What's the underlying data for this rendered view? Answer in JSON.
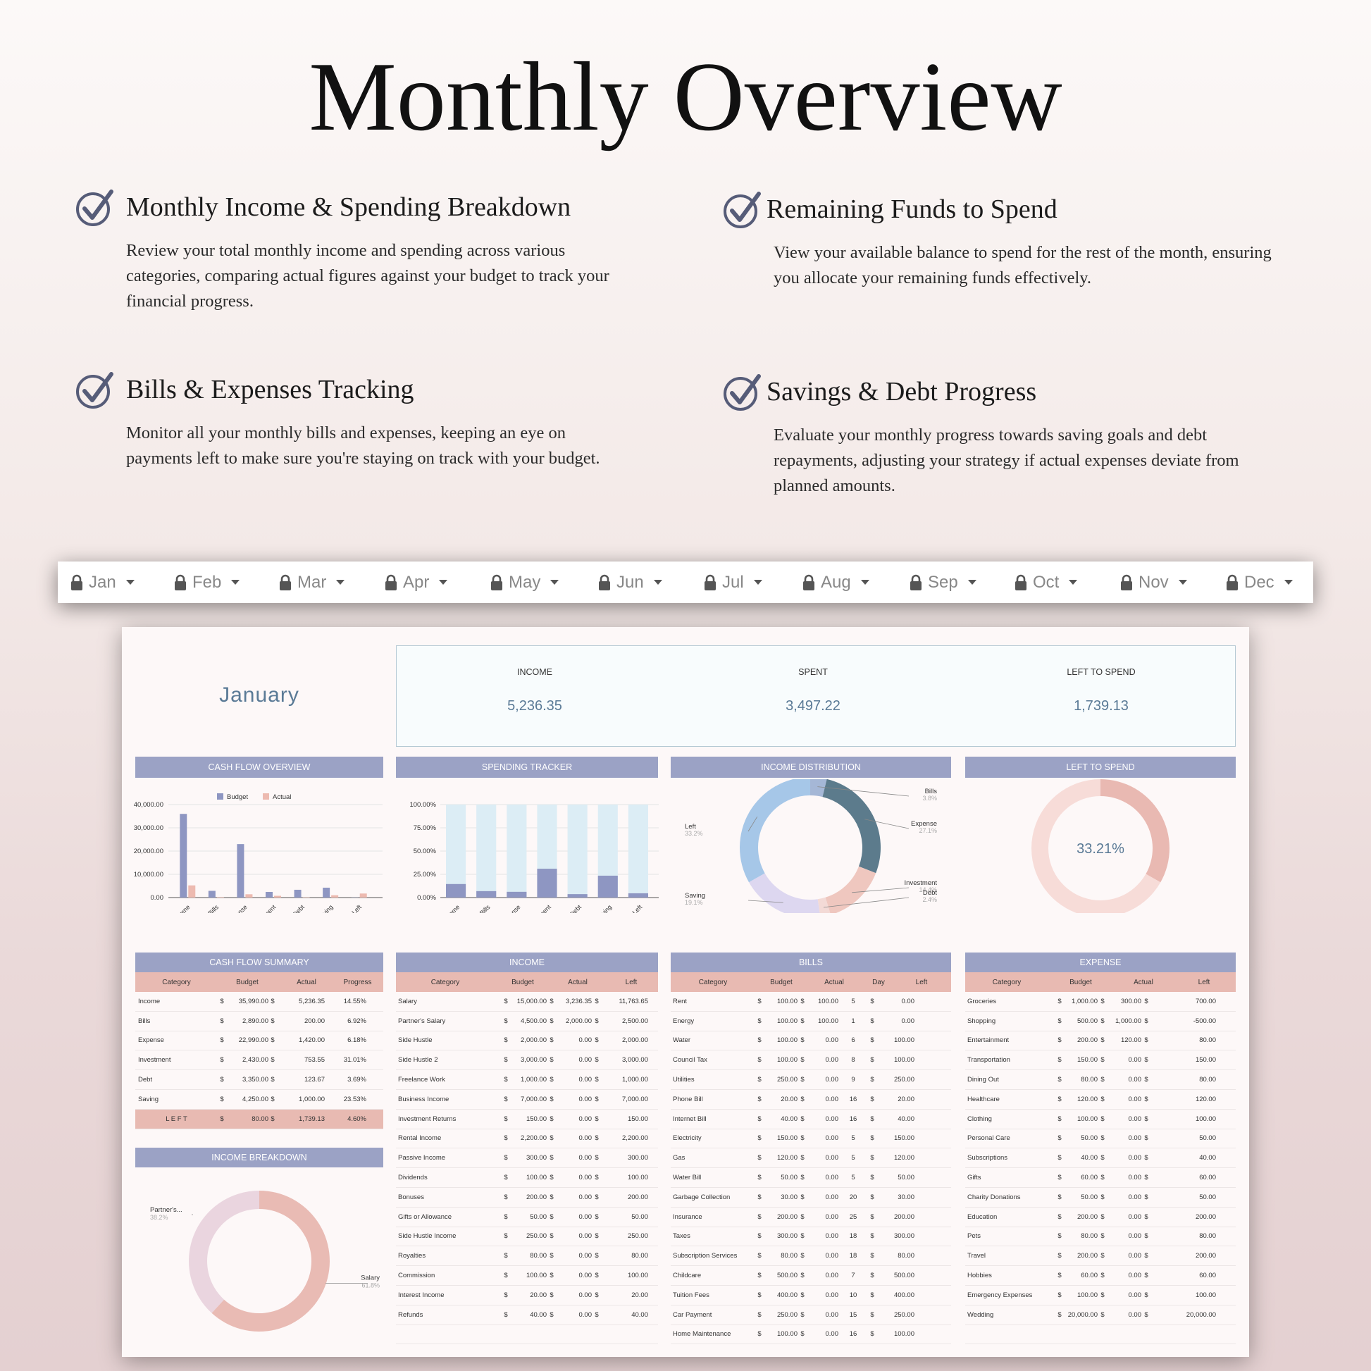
{
  "hero": {
    "title": "Monthly Overview"
  },
  "features": [
    {
      "title": "Monthly Income & Spending Breakdown",
      "text": "Review your total monthly income and spending across various categories, comparing actual figures against your budget to track your financial progress."
    },
    {
      "title": "Remaining Funds to Spend",
      "text": "View your available balance to spend for the rest of the month, ensuring you allocate your remaining funds effectively."
    },
    {
      "title": "Bills & Expenses Tracking",
      "text": "Monitor all your monthly bills and expenses, keeping an eye on payments left to make sure you're staying on track with your budget."
    },
    {
      "title": "Savings & Debt Progress",
      "text": "Evaluate your monthly progress towards saving goals and debt repayments, adjusting your strategy if actual expenses deviate from planned amounts."
    }
  ],
  "months": [
    "Jan",
    "Feb",
    "Mar",
    "Apr",
    "May",
    "Jun",
    "Jul",
    "Aug",
    "Sep",
    "Oct",
    "Nov",
    "Dec"
  ],
  "sheet": {
    "month_name": "January",
    "kpis": [
      {
        "label": "INCOME",
        "value": "5,236.35"
      },
      {
        "label": "SPENT",
        "value": "3,497.22"
      },
      {
        "label": "LEFT TO SPEND",
        "value": "1,739.13"
      }
    ],
    "headers": {
      "cash_flow_overview": "CASH FLOW OVERVIEW",
      "spending_tracker": "SPENDING TRACKER",
      "income_distribution": "INCOME DISTRIBUTION",
      "left_to_spend": "LEFT TO SPEND",
      "cash_flow_summary": "CASH FLOW SUMMARY",
      "income": "INCOME",
      "bills": "BILLS",
      "expense": "EXPENSE",
      "income_breakdown": "INCOME BREAKDOWN"
    },
    "cash_flow_summary": {
      "columns": [
        "Category",
        "Budget",
        "Actual",
        "Progress"
      ],
      "rows": [
        [
          "Income",
          "$",
          "35,990.00",
          "$",
          "5,236.35",
          "14.55%"
        ],
        [
          "Bills",
          "$",
          "2,890.00",
          "$",
          "200.00",
          "6.92%"
        ],
        [
          "Expense",
          "$",
          "22,990.00",
          "$",
          "1,420.00",
          "6.18%"
        ],
        [
          "Investment",
          "$",
          "2,430.00",
          "$",
          "753.55",
          "31.01%"
        ],
        [
          "Debt",
          "$",
          "3,350.00",
          "$",
          "123.67",
          "3.69%"
        ],
        [
          "Saving",
          "$",
          "4,250.00",
          "$",
          "1,000.00",
          "23.53%"
        ]
      ],
      "left_row": [
        "L E F T",
        "$",
        "80.00",
        "$",
        "1,739.13",
        "4.60%"
      ]
    },
    "income_table": {
      "columns": [
        "Category",
        "Budget",
        "Actual",
        "Left"
      ],
      "rows": [
        [
          "Salary",
          "$",
          "15,000.00",
          "$",
          "3,236.35",
          "$",
          "11,763.65"
        ],
        [
          "Partner's Salary",
          "$",
          "4,500.00",
          "$",
          "2,000.00",
          "$",
          "2,500.00"
        ],
        [
          "Side Hustle",
          "$",
          "2,000.00",
          "$",
          "0.00",
          "$",
          "2,000.00"
        ],
        [
          "Side Hustle 2",
          "$",
          "3,000.00",
          "$",
          "0.00",
          "$",
          "3,000.00"
        ],
        [
          "Freelance Work",
          "$",
          "1,000.00",
          "$",
          "0.00",
          "$",
          "1,000.00"
        ],
        [
          "Business Income",
          "$",
          "7,000.00",
          "$",
          "0.00",
          "$",
          "7,000.00"
        ],
        [
          "Investment Returns",
          "$",
          "150.00",
          "$",
          "0.00",
          "$",
          "150.00"
        ],
        [
          "Rental Income",
          "$",
          "2,200.00",
          "$",
          "0.00",
          "$",
          "2,200.00"
        ],
        [
          "Passive Income",
          "$",
          "300.00",
          "$",
          "0.00",
          "$",
          "300.00"
        ],
        [
          "Dividends",
          "$",
          "100.00",
          "$",
          "0.00",
          "$",
          "100.00"
        ],
        [
          "Bonuses",
          "$",
          "200.00",
          "$",
          "0.00",
          "$",
          "200.00"
        ],
        [
          "Gifts or Allowance",
          "$",
          "50.00",
          "$",
          "0.00",
          "$",
          "50.00"
        ],
        [
          "Side Hustle Income",
          "$",
          "250.00",
          "$",
          "0.00",
          "$",
          "250.00"
        ],
        [
          "Royalties",
          "$",
          "80.00",
          "$",
          "0.00",
          "$",
          "80.00"
        ],
        [
          "Commission",
          "$",
          "100.00",
          "$",
          "0.00",
          "$",
          "100.00"
        ],
        [
          "Interest Income",
          "$",
          "20.00",
          "$",
          "0.00",
          "$",
          "20.00"
        ],
        [
          "Refunds",
          "$",
          "40.00",
          "$",
          "0.00",
          "$",
          "40.00"
        ],
        [
          "",
          "",
          "",
          "",
          "",
          "",
          ""
        ]
      ]
    },
    "bills_table": {
      "columns": [
        "Category",
        "Budget",
        "Actual",
        "Day",
        "Left"
      ],
      "rows": [
        [
          "Rent",
          "$",
          "100.00",
          "$",
          "100.00",
          "5",
          "$",
          "0.00"
        ],
        [
          "Energy",
          "$",
          "100.00",
          "$",
          "100.00",
          "1",
          "$",
          "0.00"
        ],
        [
          "Water",
          "$",
          "100.00",
          "$",
          "0.00",
          "6",
          "$",
          "100.00"
        ],
        [
          "Council Tax",
          "$",
          "100.00",
          "$",
          "0.00",
          "8",
          "$",
          "100.00"
        ],
        [
          "Utilities",
          "$",
          "250.00",
          "$",
          "0.00",
          "9",
          "$",
          "250.00"
        ],
        [
          "Phone Bill",
          "$",
          "20.00",
          "$",
          "0.00",
          "16",
          "$",
          "20.00"
        ],
        [
          "Internet Bill",
          "$",
          "40.00",
          "$",
          "0.00",
          "16",
          "$",
          "40.00"
        ],
        [
          "Electricity",
          "$",
          "150.00",
          "$",
          "0.00",
          "5",
          "$",
          "150.00"
        ],
        [
          "Gas",
          "$",
          "120.00",
          "$",
          "0.00",
          "5",
          "$",
          "120.00"
        ],
        [
          "Water Bill",
          "$",
          "50.00",
          "$",
          "0.00",
          "5",
          "$",
          "50.00"
        ],
        [
          "Garbage Collection",
          "$",
          "30.00",
          "$",
          "0.00",
          "20",
          "$",
          "30.00"
        ],
        [
          "Insurance",
          "$",
          "200.00",
          "$",
          "0.00",
          "25",
          "$",
          "200.00"
        ],
        [
          "Taxes",
          "$",
          "300.00",
          "$",
          "0.00",
          "18",
          "$",
          "300.00"
        ],
        [
          "Subscription Services",
          "$",
          "80.00",
          "$",
          "0.00",
          "18",
          "$",
          "80.00"
        ],
        [
          "Childcare",
          "$",
          "500.00",
          "$",
          "0.00",
          "7",
          "$",
          "500.00"
        ],
        [
          "Tuition Fees",
          "$",
          "400.00",
          "$",
          "0.00",
          "10",
          "$",
          "400.00"
        ],
        [
          "Car Payment",
          "$",
          "250.00",
          "$",
          "0.00",
          "15",
          "$",
          "250.00"
        ],
        [
          "Home Maintenance",
          "$",
          "100.00",
          "$",
          "0.00",
          "16",
          "$",
          "100.00"
        ]
      ]
    },
    "expense_table": {
      "columns": [
        "Category",
        "Budget",
        "Actual",
        "Left"
      ],
      "rows": [
        [
          "Groceries",
          "$",
          "1,000.00",
          "$",
          "300.00",
          "$",
          "700.00"
        ],
        [
          "Shopping",
          "$",
          "500.00",
          "$",
          "1,000.00",
          "$",
          "-500.00"
        ],
        [
          "Entertainment",
          "$",
          "200.00",
          "$",
          "120.00",
          "$",
          "80.00"
        ],
        [
          "Transportation",
          "$",
          "150.00",
          "$",
          "0.00",
          "$",
          "150.00"
        ],
        [
          "Dining Out",
          "$",
          "80.00",
          "$",
          "0.00",
          "$",
          "80.00"
        ],
        [
          "Healthcare",
          "$",
          "120.00",
          "$",
          "0.00",
          "$",
          "120.00"
        ],
        [
          "Clothing",
          "$",
          "100.00",
          "$",
          "0.00",
          "$",
          "100.00"
        ],
        [
          "Personal Care",
          "$",
          "50.00",
          "$",
          "0.00",
          "$",
          "50.00"
        ],
        [
          "Subscriptions",
          "$",
          "40.00",
          "$",
          "0.00",
          "$",
          "40.00"
        ],
        [
          "Gifts",
          "$",
          "60.00",
          "$",
          "0.00",
          "$",
          "60.00"
        ],
        [
          "Charity Donations",
          "$",
          "50.00",
          "$",
          "0.00",
          "$",
          "50.00"
        ],
        [
          "Education",
          "$",
          "200.00",
          "$",
          "0.00",
          "$",
          "200.00"
        ],
        [
          "Pets",
          "$",
          "80.00",
          "$",
          "0.00",
          "$",
          "80.00"
        ],
        [
          "Travel",
          "$",
          "200.00",
          "$",
          "0.00",
          "$",
          "200.00"
        ],
        [
          "Hobbies",
          "$",
          "60.00",
          "$",
          "0.00",
          "$",
          "60.00"
        ],
        [
          "Emergency Expenses",
          "$",
          "100.00",
          "$",
          "0.00",
          "$",
          "100.00"
        ],
        [
          "Wedding",
          "$",
          "20,000.00",
          "$",
          "0.00",
          "$",
          "20,000.00"
        ],
        [
          "",
          "",
          "",
          "",
          "",
          "",
          ""
        ]
      ]
    }
  },
  "chart_data": [
    {
      "type": "bar",
      "title": "CASH FLOW OVERVIEW",
      "categories": [
        "Income",
        "Bills",
        "Expense",
        "Investment",
        "Debt",
        "Saving",
        "Left"
      ],
      "series": [
        {
          "name": "Budget",
          "values": [
            35990,
            2890,
            22990,
            2430,
            3350,
            4250,
            80
          ]
        },
        {
          "name": "Actual",
          "values": [
            5236.35,
            200,
            1420,
            753.55,
            123.67,
            1000,
            1739.13
          ]
        }
      ],
      "yticks": [
        "0.00",
        "10,000.00",
        "20,000.00",
        "30,000.00",
        "40,000.00"
      ],
      "ylim": [
        0,
        40000
      ],
      "legend": "top",
      "colors": {
        "Budget": "#8e96c2",
        "Actual": "#edbab0"
      }
    },
    {
      "type": "bar",
      "title": "SPENDING TRACKER",
      "categories": [
        "Income",
        "Bills",
        "Expense",
        "Investment",
        "Debt",
        "Saving",
        "Left"
      ],
      "values": [
        14.55,
        6.92,
        6.18,
        31.01,
        3.69,
        23.53,
        4.6
      ],
      "yticks": [
        "0.00%",
        "25.00%",
        "50.00%",
        "75.00%",
        "100.00%"
      ],
      "ylim": [
        0,
        100
      ],
      "colors": {
        "fill": "#8e96c2",
        "track": "#dcedf5"
      }
    },
    {
      "type": "pie",
      "title": "INCOME DISTRIBUTION",
      "slices": [
        {
          "label": "Bills",
          "pct": "3.8%",
          "value": 3.8,
          "color": "#a5b7d6"
        },
        {
          "label": "Expense",
          "pct": "27.1%",
          "value": 27.1,
          "color": "#5c7b8c"
        },
        {
          "label": "Investment",
          "pct": "14.4%",
          "value": 14.4,
          "color": "#efc7bf"
        },
        {
          "label": "Debt",
          "pct": "2.4%",
          "value": 2.4,
          "color": "#f3dad6"
        },
        {
          "label": "Saving",
          "pct": "19.1%",
          "value": 19.1,
          "color": "#ddd7f0"
        },
        {
          "label": "Left",
          "pct": "33.2%",
          "value": 33.2,
          "color": "#a6c7e8"
        }
      ]
    },
    {
      "type": "pie",
      "title": "LEFT TO SPEND",
      "center_label": "33.21%",
      "slices": [
        {
          "value": 33.21,
          "color": "#e9b9b2"
        },
        {
          "value": 66.79,
          "color": "#f7dcd8"
        }
      ]
    },
    {
      "type": "pie",
      "title": "INCOME BREAKDOWN",
      "slices": [
        {
          "label": "Salary",
          "pct": "61.8%",
          "value": 61.8,
          "color": "#e9bbb4"
        },
        {
          "label": "Partner's...",
          "pct": "38.2%",
          "value": 38.2,
          "color": "#ead5df"
        }
      ]
    }
  ]
}
